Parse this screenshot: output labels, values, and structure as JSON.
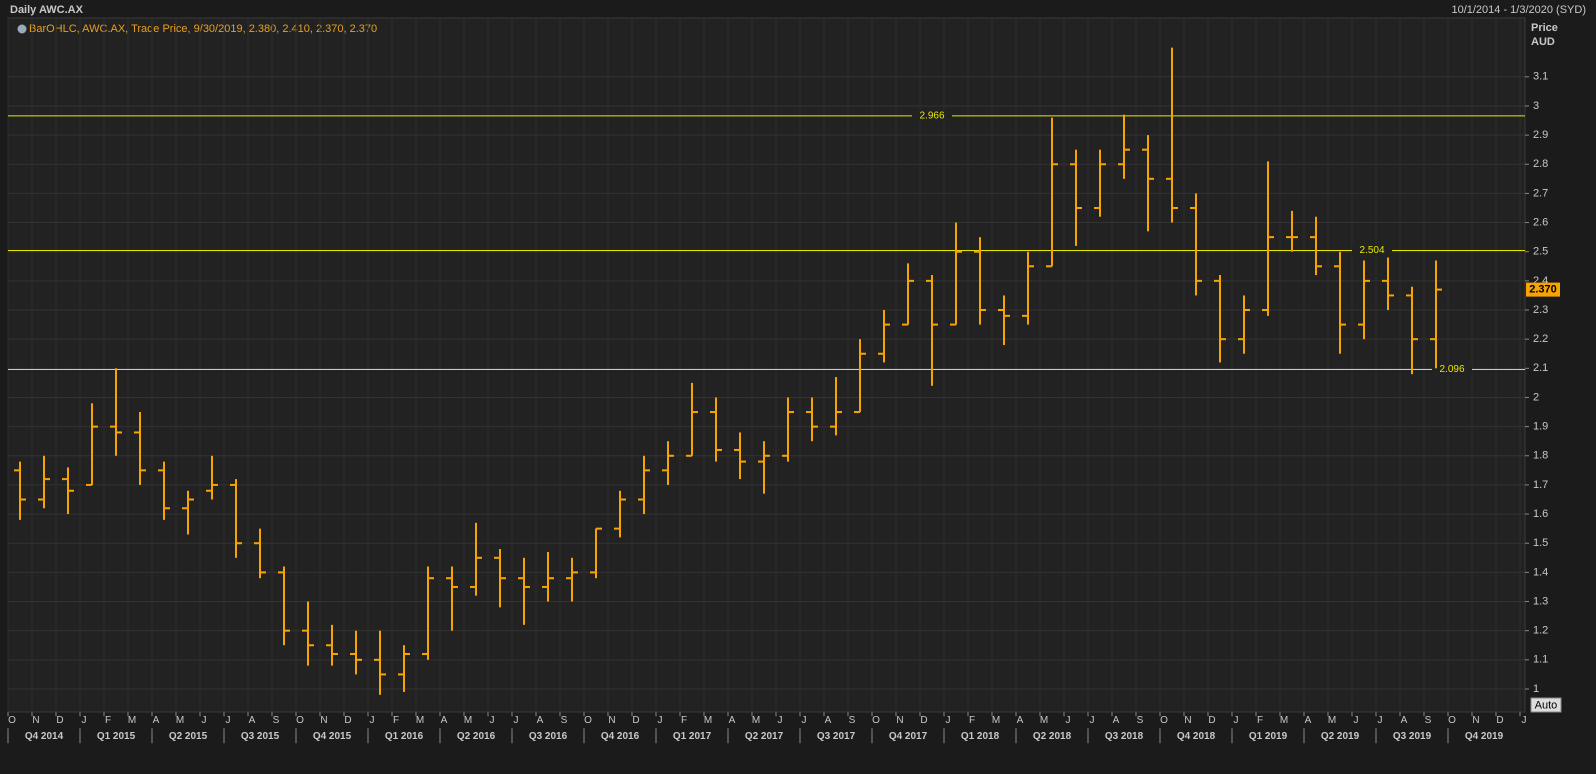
{
  "chart_data": {
    "type": "ohlc",
    "title": "Daily AWC.AX",
    "date_range": "10/1/2014 - 1/3/2020 (SYD)",
    "legend_text": "BarOHLC, AWC.AX, Trade Price, 9/30/2019, 2.380, 2.410, 2.370, 2.370",
    "y_label": [
      "Price",
      "AUD"
    ],
    "color": "#f7a400",
    "level_color": "#e6e600",
    "grid": true,
    "ylim": [
      0.92,
      3.3
    ],
    "yticks": [
      1,
      1.1,
      1.2,
      1.3,
      1.4,
      1.5,
      1.6,
      1.7,
      1.8,
      1.9,
      2,
      2.1,
      2.2,
      2.3,
      2.4,
      2.5,
      2.6,
      2.7,
      2.8,
      2.9,
      3,
      3.1
    ],
    "levels": [
      2.966,
      2.504,
      2.096
    ],
    "last_label": "2.370",
    "auto_button": "Auto",
    "month_ticks": [
      "O",
      "N",
      "D",
      "J",
      "F",
      "M",
      "A",
      "M",
      "J",
      "J",
      "A",
      "S",
      "O",
      "N",
      "D",
      "J",
      "F",
      "M",
      "A",
      "M",
      "J",
      "J",
      "A",
      "S",
      "O",
      "N",
      "D",
      "J",
      "F",
      "M",
      "A",
      "M",
      "J",
      "J",
      "A",
      "S",
      "O",
      "N",
      "D",
      "J",
      "F",
      "M",
      "A",
      "M",
      "J",
      "J",
      "A",
      "S",
      "O",
      "N",
      "D",
      "J",
      "F",
      "M",
      "A",
      "M",
      "J",
      "J",
      "A",
      "S",
      "O",
      "N",
      "D",
      "J"
    ],
    "quarter_ticks": [
      "Q4 2014",
      "Q1 2015",
      "Q2 2015",
      "Q3 2015",
      "Q4 2015",
      "Q1 2016",
      "Q2 2016",
      "Q3 2016",
      "Q4 2016",
      "Q1 2017",
      "Q2 2017",
      "Q3 2017",
      "Q4 2017",
      "Q1 2018",
      "Q2 2018",
      "Q3 2018",
      "Q4 2018",
      "Q1 2019",
      "Q2 2019",
      "Q3 2019",
      "Q4 2019"
    ],
    "x": [
      "2014-10",
      "2014-11",
      "2014-12",
      "2015-01",
      "2015-02",
      "2015-03",
      "2015-04",
      "2015-05",
      "2015-06",
      "2015-07",
      "2015-08",
      "2015-09",
      "2015-10",
      "2015-11",
      "2015-12",
      "2016-01",
      "2016-02",
      "2016-03",
      "2016-04",
      "2016-05",
      "2016-06",
      "2016-07",
      "2016-08",
      "2016-09",
      "2016-10",
      "2016-11",
      "2016-12",
      "2017-01",
      "2017-02",
      "2017-03",
      "2017-04",
      "2017-05",
      "2017-06",
      "2017-07",
      "2017-08",
      "2017-09",
      "2017-10",
      "2017-11",
      "2017-12",
      "2018-01",
      "2018-02",
      "2018-03",
      "2018-04",
      "2018-05",
      "2018-06",
      "2018-07",
      "2018-08",
      "2018-09",
      "2018-10",
      "2018-11",
      "2018-12",
      "2019-01",
      "2019-02",
      "2019-03",
      "2019-04",
      "2019-05",
      "2019-06",
      "2019-07",
      "2019-08",
      "2019-09"
    ],
    "open": [
      1.75,
      1.65,
      1.72,
      1.7,
      1.9,
      1.88,
      1.75,
      1.62,
      1.68,
      1.7,
      1.5,
      1.4,
      1.2,
      1.15,
      1.12,
      1.1,
      1.05,
      1.12,
      1.38,
      1.35,
      1.45,
      1.38,
      1.35,
      1.38,
      1.4,
      1.55,
      1.65,
      1.75,
      1.8,
      1.95,
      1.82,
      1.78,
      1.8,
      1.95,
      1.9,
      1.95,
      2.15,
      2.25,
      2.4,
      2.25,
      2.5,
      2.3,
      2.28,
      2.45,
      2.8,
      2.65,
      2.8,
      2.85,
      2.75,
      2.65,
      2.4,
      2.2,
      2.3,
      2.55,
      2.55,
      2.45,
      2.25,
      2.4,
      2.35,
      2.2
    ],
    "high": [
      1.78,
      1.8,
      1.76,
      1.98,
      2.1,
      1.95,
      1.78,
      1.68,
      1.8,
      1.72,
      1.55,
      1.42,
      1.3,
      1.22,
      1.2,
      1.2,
      1.15,
      1.42,
      1.42,
      1.57,
      1.48,
      1.45,
      1.47,
      1.45,
      1.55,
      1.68,
      1.8,
      1.85,
      2.05,
      2.0,
      1.88,
      1.85,
      2.0,
      2.0,
      2.07,
      2.2,
      2.3,
      2.46,
      2.42,
      2.6,
      2.55,
      2.35,
      2.5,
      2.96,
      2.85,
      2.85,
      2.97,
      2.9,
      3.2,
      2.7,
      2.42,
      2.35,
      2.81,
      2.64,
      2.62,
      2.5,
      2.47,
      2.48,
      2.38,
      2.47
    ],
    "low": [
      1.58,
      1.62,
      1.6,
      1.7,
      1.8,
      1.7,
      1.58,
      1.53,
      1.65,
      1.45,
      1.38,
      1.15,
      1.08,
      1.08,
      1.05,
      0.98,
      0.99,
      1.1,
      1.2,
      1.32,
      1.28,
      1.22,
      1.3,
      1.3,
      1.38,
      1.52,
      1.6,
      1.7,
      1.8,
      1.78,
      1.72,
      1.67,
      1.78,
      1.85,
      1.87,
      1.95,
      2.12,
      2.25,
      2.04,
      2.25,
      2.25,
      2.18,
      2.25,
      2.45,
      2.52,
      2.62,
      2.75,
      2.57,
      2.6,
      2.35,
      2.12,
      2.15,
      2.28,
      2.5,
      2.42,
      2.15,
      2.2,
      2.3,
      2.08,
      2.1
    ],
    "close": [
      1.65,
      1.72,
      1.68,
      1.9,
      1.88,
      1.75,
      1.62,
      1.65,
      1.7,
      1.5,
      1.4,
      1.2,
      1.15,
      1.12,
      1.1,
      1.05,
      1.12,
      1.38,
      1.35,
      1.45,
      1.38,
      1.35,
      1.38,
      1.4,
      1.55,
      1.65,
      1.75,
      1.8,
      1.95,
      1.82,
      1.78,
      1.8,
      1.95,
      1.9,
      1.95,
      2.15,
      2.25,
      2.4,
      2.25,
      2.5,
      2.3,
      2.28,
      2.45,
      2.8,
      2.65,
      2.8,
      2.85,
      2.75,
      2.65,
      2.4,
      2.2,
      2.3,
      2.55,
      2.55,
      2.45,
      2.25,
      2.4,
      2.35,
      2.2,
      2.37
    ]
  }
}
